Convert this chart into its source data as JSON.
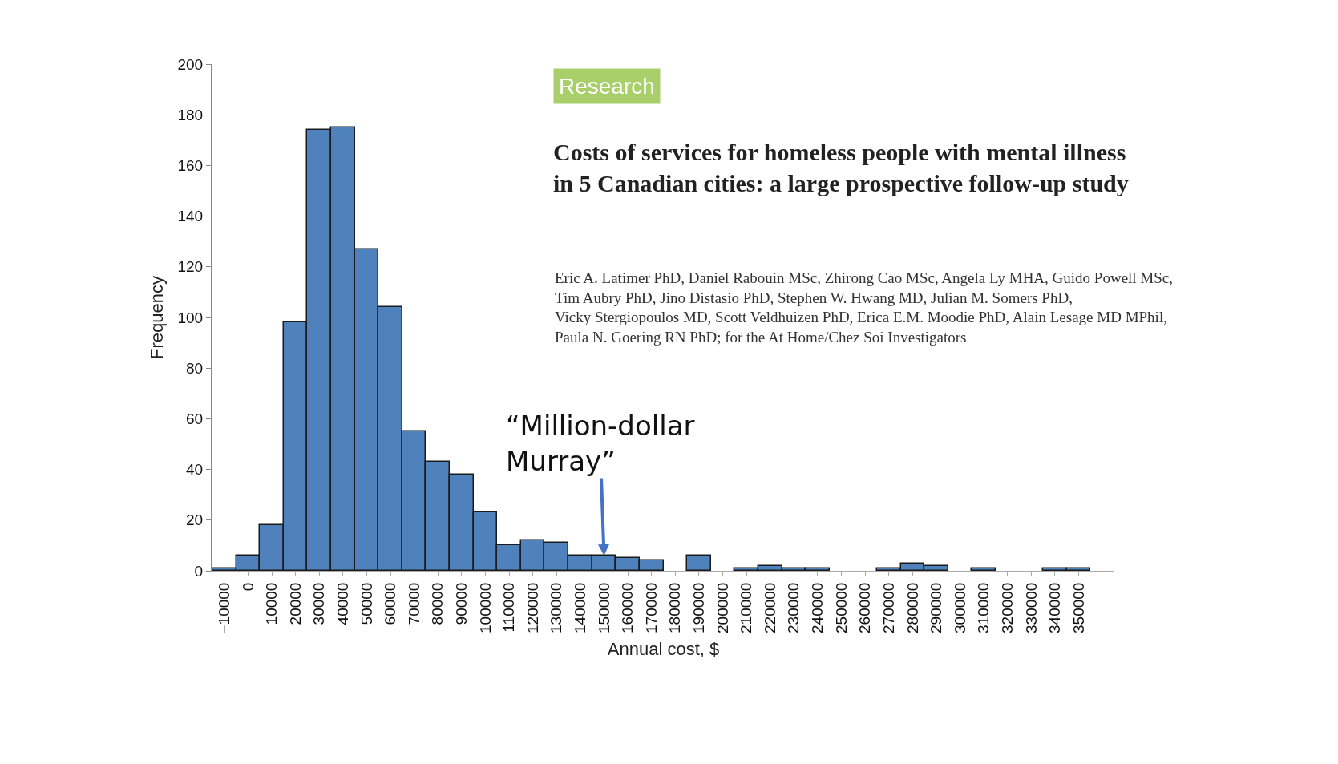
{
  "chart_data": {
    "type": "bar",
    "title": "Costs of services for homeless people with mental illness\nin 5 Canadian cities: a large prospective follow-up study",
    "subtitle": "Research",
    "xlabel": "Annual cost, $",
    "ylabel": "Frequency",
    "categories": [
      "−10000",
      "0",
      "10000",
      "20000",
      "30000",
      "40000",
      "50000",
      "60000",
      "70000",
      "80000",
      "90000",
      "100000",
      "110000",
      "120000",
      "130000",
      "140000",
      "150000",
      "160000",
      "170000",
      "180000",
      "190000",
      "200000",
      "210000",
      "220000",
      "230000",
      "240000",
      "250000",
      "260000",
      "270000",
      "280000",
      "290000",
      "300000",
      "310000",
      "320000",
      "330000",
      "340000",
      "350000"
    ],
    "values": [
      1,
      6,
      18,
      98,
      174,
      175,
      127,
      104,
      55,
      43,
      38,
      23,
      10,
      12,
      11,
      6,
      6,
      5,
      4,
      0,
      6,
      0,
      1,
      2,
      1,
      1,
      0,
      0,
      1,
      3,
      2,
      0,
      1,
      0,
      0,
      1,
      1
    ],
    "color": "#4f81bd",
    "ylim": [
      0,
      200
    ],
    "yticks": [
      0,
      20,
      40,
      60,
      80,
      100,
      120,
      140,
      160,
      180,
      200
    ],
    "annotations": [
      {
        "text": "“Million-dollar\nMurray”",
        "x": "150000",
        "y": 6
      },
      "Eric A. Latimer PhD, Daniel Rabouin MSc, Zhirong Cao MSc, Angela Ly MHA, Guido Powell MSc,\nTim Aubry PhD, Jino Distasio PhD, Stephen W. Hwang MD, Julian M. Somers PhD,\nVicky Stergiopoulos MD, Scott Veldhuizen PhD, Erica E.M. Moodie PhD, Alain Lesage MD MPhil,\nPaula N. Goering RN PhD; for the At Home/Chez Soi Investigators"
    ]
  }
}
